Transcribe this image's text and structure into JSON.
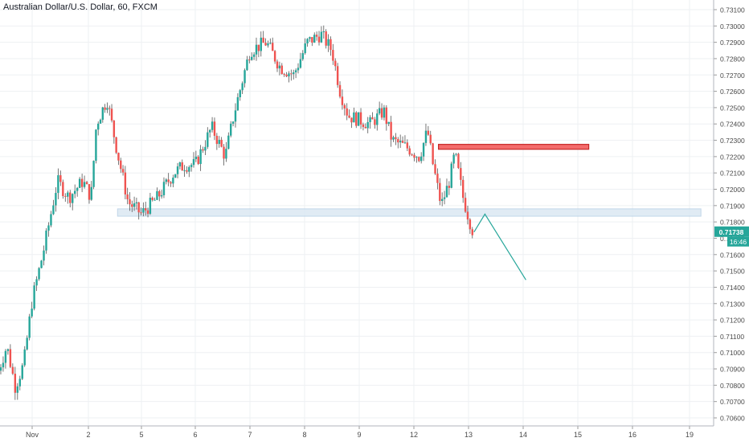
{
  "header": {
    "title": "Australian Dollar/U.S. Dollar, 60, FXCM"
  },
  "price_badge": {
    "value": "0.71738",
    "countdown": "16:46"
  },
  "colors": {
    "up": "#26a69a",
    "down": "#ef5350",
    "wick": "#666666",
    "grid": "#eef0f3",
    "axis_text": "#4a4a4a",
    "badge": "#26a69a",
    "support_fill": "#dbe8f3",
    "support_border": "#b7d0e6",
    "resistance_fill": "#f36b6b",
    "resistance_border": "#c62828",
    "projection": "#26a69a"
  },
  "chart_data": {
    "type": "candlestick",
    "title": "Australian Dollar/U.S. Dollar, 60, FXCM",
    "xlabel": "",
    "ylabel": "",
    "ylim": [
      0.706,
      0.731
    ],
    "y_ticks": [
      "0.73100",
      "0.73000",
      "0.72900",
      "0.72800",
      "0.72700",
      "0.72600",
      "0.72500",
      "0.72400",
      "0.72300",
      "0.72200",
      "0.72100",
      "0.72000",
      "0.71900",
      "0.71800",
      "0.71700",
      "0.71600",
      "0.71500",
      "0.71400",
      "0.71300",
      "0.71200",
      "0.71100",
      "0.71000",
      "0.70900",
      "0.70800",
      "0.70700",
      "0.70600"
    ],
    "x_ticks": [
      {
        "label": "Nov",
        "day": 1
      },
      {
        "label": "2",
        "day": 2
      },
      {
        "label": "5",
        "day": 5
      },
      {
        "label": "6",
        "day": 6
      },
      {
        "label": "7",
        "day": 7
      },
      {
        "label": "8",
        "day": 8
      },
      {
        "label": "9",
        "day": 9
      },
      {
        "label": "12",
        "day": 12
      },
      {
        "label": "13",
        "day": 13
      },
      {
        "label": "14",
        "day": 14
      },
      {
        "label": "15",
        "day": 15
      },
      {
        "label": "16",
        "day": 16
      },
      {
        "label": "19",
        "day": 19
      }
    ],
    "last_price": 0.71738,
    "path": [
      [
        0.4,
        0.7089
      ],
      [
        0.55,
        0.7104
      ],
      [
        0.7,
        0.7079
      ],
      [
        0.85,
        0.7093
      ],
      [
        1.0,
        0.7132
      ],
      [
        1.2,
        0.7162
      ],
      [
        1.45,
        0.7205
      ],
      [
        1.65,
        0.7195
      ],
      [
        1.9,
        0.7205
      ],
      [
        2.05,
        0.7195
      ],
      [
        2.15,
        0.724
      ],
      [
        2.35,
        0.7255
      ],
      [
        2.55,
        0.7222
      ],
      [
        2.75,
        0.7192
      ],
      [
        3.0,
        0.7185
      ],
      [
        3.3,
        0.7195
      ],
      [
        3.6,
        0.721
      ],
      [
        3.8,
        0.7215
      ],
      [
        4.0,
        0.7215
      ],
      [
        4.3,
        0.7238
      ],
      [
        4.55,
        0.722
      ],
      [
        4.7,
        0.7245
      ],
      [
        5.0,
        0.7285
      ],
      [
        5.3,
        0.729
      ],
      [
        5.55,
        0.7275
      ],
      [
        5.8,
        0.727
      ],
      [
        6.05,
        0.729
      ],
      [
        6.3,
        0.7295
      ],
      [
        6.5,
        0.7285
      ],
      [
        6.65,
        0.726
      ],
      [
        6.8,
        0.7245
      ],
      [
        7.2,
        0.724
      ],
      [
        7.45,
        0.7248
      ],
      [
        7.6,
        0.723
      ],
      [
        7.9,
        0.7225
      ],
      [
        8.1,
        0.722
      ],
      [
        8.25,
        0.7236
      ],
      [
        8.35,
        0.7215
      ],
      [
        8.5,
        0.719
      ],
      [
        8.65,
        0.7205
      ],
      [
        8.75,
        0.7222
      ],
      [
        8.9,
        0.7195
      ],
      [
        9.0,
        0.7183
      ],
      [
        9.1,
        0.7172
      ]
    ],
    "annotations": {
      "resistance_zone": {
        "x_from": 8.45,
        "x_to": 11.2,
        "y_low": 0.72245,
        "y_high": 0.72275
      },
      "support_zone": {
        "x_from": 2.55,
        "x_to": 13.2,
        "y_low": 0.71835,
        "y_high": 0.7188
      },
      "projection": [
        [
          9.1,
          0.71738
        ],
        [
          9.3,
          0.71848
        ],
        [
          10.05,
          0.71445
        ]
      ]
    }
  }
}
